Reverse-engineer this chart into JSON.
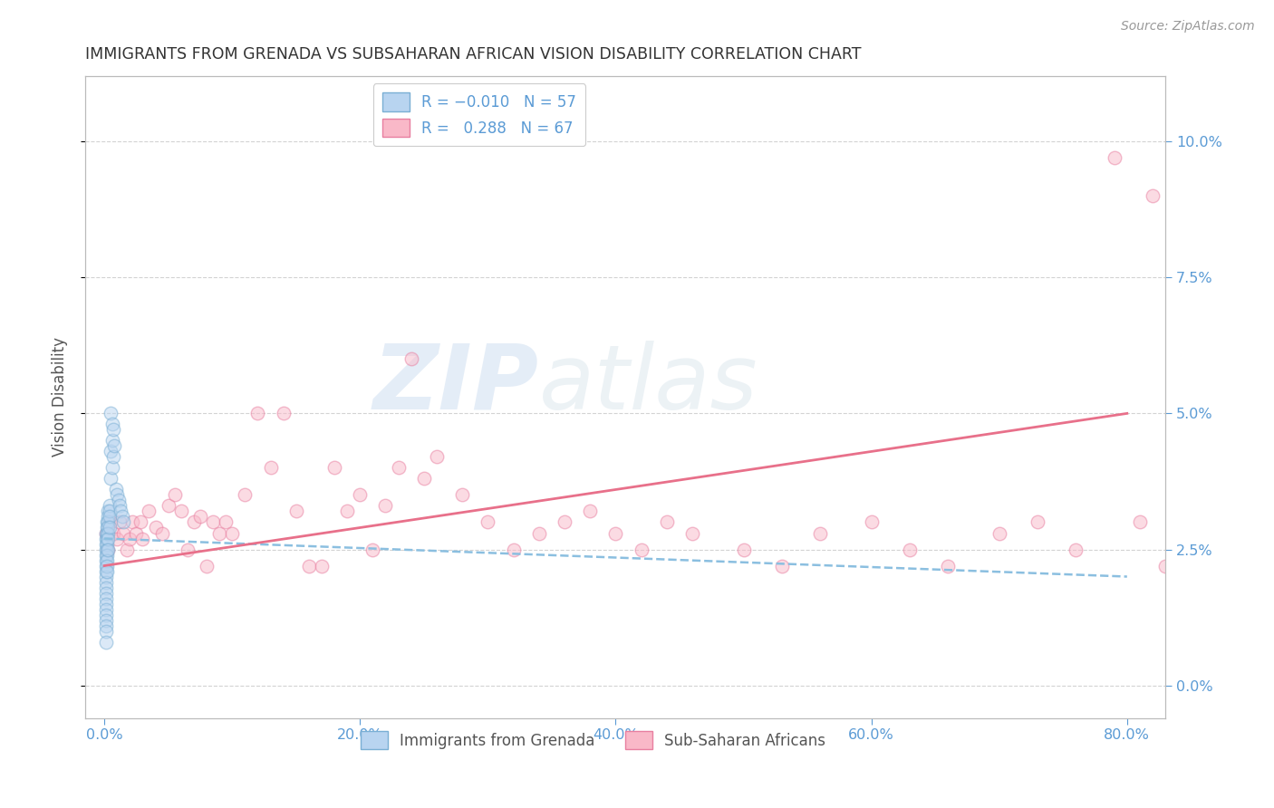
{
  "title": "IMMIGRANTS FROM GRENADA VS SUBSAHARAN AFRICAN VISION DISABILITY CORRELATION CHART",
  "source": "Source: ZipAtlas.com",
  "xlabel_tick_vals": [
    0.0,
    0.2,
    0.4,
    0.6,
    0.8
  ],
  "ylabel": "Vision Disability",
  "ylabel_tick_vals": [
    0.0,
    0.025,
    0.05,
    0.075,
    0.1
  ],
  "xlim": [
    -0.015,
    0.83
  ],
  "ylim": [
    -0.006,
    0.112
  ],
  "blue_scatter_x": [
    0.001,
    0.001,
    0.001,
    0.001,
    0.001,
    0.001,
    0.001,
    0.001,
    0.001,
    0.001,
    0.001,
    0.001,
    0.001,
    0.001,
    0.001,
    0.001,
    0.001,
    0.001,
    0.001,
    0.001,
    0.002,
    0.002,
    0.002,
    0.002,
    0.002,
    0.002,
    0.002,
    0.002,
    0.002,
    0.002,
    0.003,
    0.003,
    0.003,
    0.003,
    0.003,
    0.003,
    0.003,
    0.004,
    0.004,
    0.004,
    0.004,
    0.005,
    0.005,
    0.005,
    0.006,
    0.006,
    0.006,
    0.007,
    0.007,
    0.008,
    0.009,
    0.01,
    0.011,
    0.012,
    0.013,
    0.014,
    0.015
  ],
  "blue_scatter_y": [
    0.028,
    0.027,
    0.026,
    0.025,
    0.024,
    0.023,
    0.022,
    0.021,
    0.02,
    0.019,
    0.018,
    0.017,
    0.016,
    0.015,
    0.014,
    0.013,
    0.012,
    0.011,
    0.01,
    0.008,
    0.03,
    0.029,
    0.028,
    0.027,
    0.026,
    0.025,
    0.024,
    0.023,
    0.022,
    0.021,
    0.032,
    0.031,
    0.03,
    0.029,
    0.028,
    0.027,
    0.025,
    0.033,
    0.032,
    0.031,
    0.029,
    0.05,
    0.043,
    0.038,
    0.048,
    0.045,
    0.04,
    0.047,
    0.042,
    0.044,
    0.036,
    0.035,
    0.034,
    0.033,
    0.032,
    0.031,
    0.03
  ],
  "pink_scatter_x": [
    0.001,
    0.003,
    0.005,
    0.007,
    0.01,
    0.012,
    0.015,
    0.018,
    0.02,
    0.022,
    0.025,
    0.028,
    0.03,
    0.035,
    0.04,
    0.045,
    0.05,
    0.055,
    0.06,
    0.065,
    0.07,
    0.075,
    0.08,
    0.085,
    0.09,
    0.095,
    0.1,
    0.11,
    0.12,
    0.13,
    0.14,
    0.15,
    0.16,
    0.17,
    0.18,
    0.19,
    0.2,
    0.21,
    0.22,
    0.23,
    0.24,
    0.25,
    0.26,
    0.28,
    0.3,
    0.32,
    0.34,
    0.36,
    0.38,
    0.4,
    0.42,
    0.44,
    0.46,
    0.5,
    0.53,
    0.56,
    0.6,
    0.63,
    0.66,
    0.7,
    0.73,
    0.76,
    0.79,
    0.81,
    0.82,
    0.83,
    0.84
  ],
  "pink_scatter_y": [
    0.028,
    0.025,
    0.03,
    0.028,
    0.027,
    0.03,
    0.028,
    0.025,
    0.027,
    0.03,
    0.028,
    0.03,
    0.027,
    0.032,
    0.029,
    0.028,
    0.033,
    0.035,
    0.032,
    0.025,
    0.03,
    0.031,
    0.022,
    0.03,
    0.028,
    0.03,
    0.028,
    0.035,
    0.05,
    0.04,
    0.05,
    0.032,
    0.022,
    0.022,
    0.04,
    0.032,
    0.035,
    0.025,
    0.033,
    0.04,
    0.06,
    0.038,
    0.042,
    0.035,
    0.03,
    0.025,
    0.028,
    0.03,
    0.032,
    0.028,
    0.025,
    0.03,
    0.028,
    0.025,
    0.022,
    0.028,
    0.03,
    0.025,
    0.022,
    0.028,
    0.03,
    0.025,
    0.097,
    0.03,
    0.09,
    0.022,
    0.025
  ],
  "blue_line_x": [
    0.0,
    0.8
  ],
  "blue_line_y": [
    0.027,
    0.02
  ],
  "pink_line_x": [
    0.0,
    0.8
  ],
  "pink_line_y": [
    0.022,
    0.05
  ],
  "watermark_zip": "ZIP",
  "watermark_atlas": "atlas",
  "bg_color": "#ffffff",
  "scatter_size": 110,
  "scatter_alpha": 0.5,
  "grid_color": "#c8c8c8",
  "title_color": "#333333",
  "tick_label_color": "#5b9bd5"
}
